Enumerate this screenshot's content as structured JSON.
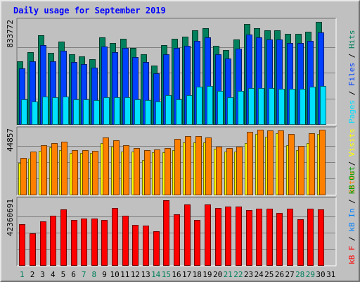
{
  "chart_data": {
    "type": "bar",
    "title": "Daily usage for September 2019",
    "categories": [
      "1",
      "2",
      "3",
      "4",
      "5",
      "6",
      "7",
      "8",
      "9",
      "10",
      "11",
      "12",
      "13",
      "14",
      "15",
      "16",
      "17",
      "18",
      "19",
      "20",
      "21",
      "22",
      "23",
      "24",
      "25",
      "26",
      "27",
      "28",
      "29",
      "30",
      "31"
    ],
    "weekend_days": [
      "1",
      "7",
      "8",
      "14",
      "15",
      "21",
      "22",
      "28",
      "29"
    ],
    "panels": [
      {
        "id": "hits-files-pages",
        "ymax_label": "833772",
        "legend": [
          {
            "label": "Pages",
            "color": "#00e0ff"
          },
          {
            "label": "Files",
            "color": "#0040ff"
          },
          {
            "label": "Hits",
            "color": "#00805c"
          }
        ],
        "series": [
          {
            "name": "Hits",
            "color": "#00805c",
            "values": [
              0.61,
              0.7,
              0.86,
              0.69,
              0.8,
              0.68,
              0.66,
              0.63,
              0.84,
              0.79,
              0.83,
              0.74,
              0.68,
              0.57,
              0.77,
              0.83,
              0.85,
              0.91,
              0.93,
              0.76,
              0.72,
              0.82,
              0.97,
              0.93,
              0.91,
              0.91,
              0.88,
              0.88,
              0.9,
              0.99,
              null
            ]
          },
          {
            "name": "Files",
            "color": "#0040ff",
            "values": [
              0.54,
              0.61,
              0.77,
              0.61,
              0.71,
              0.6,
              0.58,
              0.55,
              0.75,
              0.7,
              0.74,
              0.65,
              0.6,
              0.49,
              0.68,
              0.74,
              0.76,
              0.81,
              0.84,
              0.68,
              0.64,
              0.73,
              0.87,
              0.84,
              0.82,
              0.82,
              0.79,
              0.79,
              0.81,
              0.89,
              null
            ]
          },
          {
            "name": "Pages",
            "color": "#00e0ff",
            "values": [
              0.24,
              0.22,
              0.27,
              0.26,
              0.27,
              0.24,
              0.24,
              0.23,
              0.26,
              0.26,
              0.26,
              0.24,
              0.23,
              0.22,
              0.28,
              0.24,
              0.28,
              0.36,
              0.37,
              0.32,
              0.26,
              0.32,
              0.35,
              0.35,
              0.35,
              0.34,
              0.34,
              0.34,
              0.36,
              0.37,
              null
            ]
          }
        ]
      },
      {
        "id": "visits-sites",
        "ymax_label": "44857",
        "legend": [
          {
            "label": "Sites",
            "color": "#ff8000"
          },
          {
            "label": "Visits",
            "color": "#ffff00"
          }
        ],
        "series": [
          {
            "name": "Visits",
            "color": "#ffff00",
            "values": [
              0.49,
              0.55,
              0.67,
              0.73,
              0.69,
              0.64,
              0.64,
              0.64,
              0.79,
              0.74,
              0.66,
              0.66,
              0.53,
              0.65,
              0.65,
              0.69,
              0.8,
              0.8,
              0.8,
              0.71,
              0.66,
              0.66,
              0.79,
              0.94,
              0.89,
              0.95,
              0.76,
              0.69,
              0.79,
              0.93,
              null
            ]
          },
          {
            "name": "Sites",
            "color": "#ff8000",
            "values": [
              0.57,
              0.66,
              0.76,
              0.79,
              0.81,
              0.68,
              0.68,
              0.67,
              0.88,
              0.84,
              0.76,
              0.72,
              0.68,
              0.7,
              0.72,
              0.86,
              0.9,
              0.9,
              0.88,
              0.74,
              0.72,
              0.74,
              0.97,
              1.0,
              0.99,
              0.99,
              0.94,
              0.75,
              0.95,
              1.0,
              null
            ]
          }
        ]
      },
      {
        "id": "kbytes",
        "ymax_label": "42360691",
        "legend": [
          {
            "label": "kB F",
            "color": "#ff0000"
          },
          {
            "label": "kB In",
            "color": "#0080ff"
          },
          {
            "label": "kB Out",
            "color": "#00a000"
          }
        ],
        "series": [
          {
            "name": "kB F",
            "color": "#ff0000",
            "values": [
              0.63,
              0.49,
              0.67,
              0.76,
              0.86,
              0.7,
              0.72,
              0.72,
              0.7,
              0.88,
              0.76,
              0.62,
              0.61,
              0.52,
              1.0,
              0.78,
              0.93,
              0.7,
              0.93,
              0.88,
              0.9,
              0.9,
              0.85,
              0.87,
              0.87,
              0.8,
              0.87,
              0.71,
              0.87,
              0.86,
              null
            ]
          }
        ]
      }
    ]
  }
}
